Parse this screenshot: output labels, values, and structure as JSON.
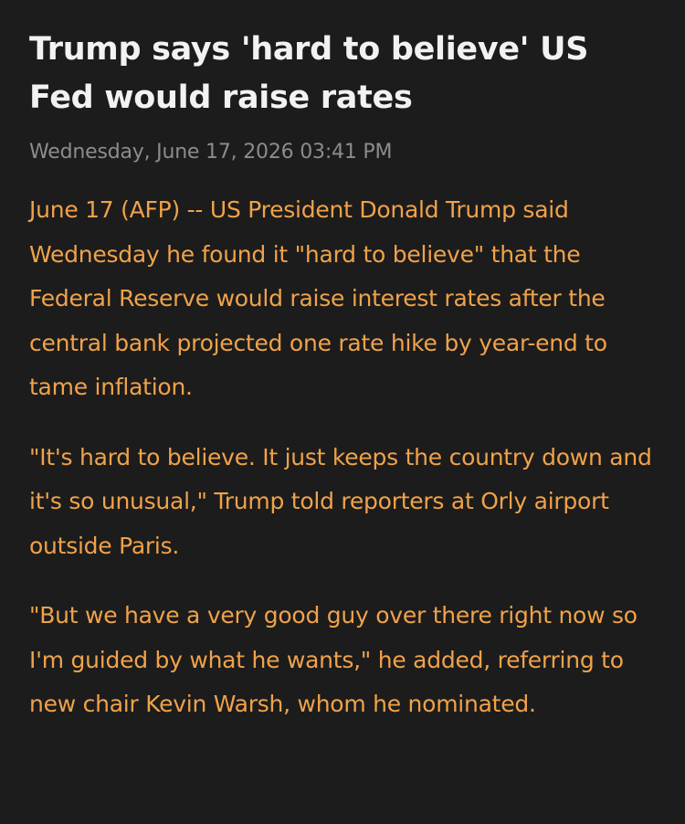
{
  "article": {
    "headline": "Trump says 'hard to believe' US Fed would raise rates",
    "timestamp": "Wednesday, June 17, 2026 03:41 PM",
    "paragraphs": [
      "June 17 (AFP) -- US President Donald Trump said Wednesday he found it \"hard to believe\" that the Federal Reserve would raise interest rates after the central bank projected one rate hike by year-end to tame inflation.",
      "\"It's hard to believe. It just keeps the country down and it's so unusual,\" Trump told reporters at Orly airport outside Paris.",
      "\"But we have a very good guy over there right now so I'm guided by what he wants,\" he added, referring to new chair Kevin Warsh, whom he nominated."
    ]
  },
  "colors": {
    "background": "#1c1c1c",
    "headline": "#f2f2f2",
    "timestamp": "#8c8c8c",
    "body": "#f0a24a"
  }
}
